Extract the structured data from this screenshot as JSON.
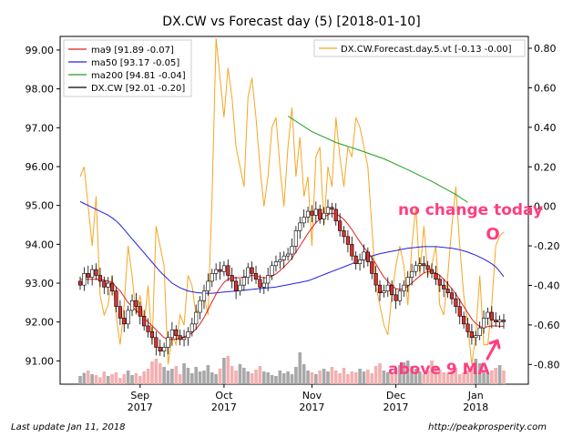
{
  "chart_data": {
    "type": "candlestick",
    "title": "DX.CW vs Forecast day (5)  [2018-01-10]",
    "left_axis": {
      "ylim": [
        90.4,
        99.35
      ],
      "ticks": [
        "99.00",
        "98.00",
        "97.00",
        "96.00",
        "95.00",
        "94.00",
        "93.00",
        "92.00",
        "91.00"
      ],
      "tick_values": [
        99,
        98,
        97,
        96,
        95,
        94,
        93,
        92,
        91
      ]
    },
    "right_axis": {
      "ylim": [
        -0.9,
        0.86
      ],
      "ticks": [
        "0.80",
        "0.60",
        "0.40",
        "0.20",
        "0.00",
        "-0.20",
        "-0.40",
        "-0.60",
        "-0.80"
      ],
      "tick_values": [
        0.8,
        0.6,
        0.4,
        0.2,
        0.0,
        -0.2,
        -0.4,
        -0.6,
        -0.8
      ]
    },
    "x_labels": [
      {
        "month": "Sep",
        "year": "2017",
        "index": 15
      },
      {
        "month": "Oct",
        "year": "2017",
        "index": 36
      },
      {
        "month": "Nov",
        "year": "2017",
        "index": 58
      },
      {
        "month": "Dec",
        "year": "2017",
        "index": 79
      },
      {
        "month": "Jan",
        "year": "2018",
        "index": 99
      }
    ],
    "n_days": 107,
    "legend_left": [
      {
        "label": "ma9 [91.89 -0.07]",
        "color": "#e02020"
      },
      {
        "label": "ma50 [93.17 -0.05]",
        "color": "#2020e0"
      },
      {
        "label": "ma200 [94.81 -0.04]",
        "color": "#20a020"
      },
      {
        "label": "DX.CW [92.01 -0.20]",
        "color": "#000000"
      }
    ],
    "legend_right": [
      {
        "label": "DX.CW.Forecast.day.5.vt [-0.13 -0.00]",
        "color": "#f5a623"
      }
    ],
    "closes": [
      92.95,
      93.25,
      93.15,
      93.35,
      93.2,
      93.05,
      92.9,
      93.0,
      92.8,
      92.4,
      92.1,
      91.95,
      92.3,
      92.55,
      92.4,
      92.15,
      91.9,
      91.75,
      91.6,
      91.35,
      91.25,
      91.35,
      91.6,
      91.8,
      91.65,
      91.55,
      91.6,
      91.75,
      91.95,
      92.25,
      92.55,
      92.8,
      93.05,
      93.25,
      93.35,
      93.3,
      93.45,
      93.2,
      93.05,
      92.8,
      92.95,
      93.15,
      93.4,
      93.25,
      93.1,
      92.9,
      93.0,
      93.2,
      93.45,
      93.55,
      93.6,
      93.7,
      93.75,
      93.95,
      94.35,
      94.55,
      94.7,
      94.85,
      94.75,
      94.9,
      94.65,
      94.8,
      94.95,
      94.9,
      94.6,
      94.35,
      94.2,
      94.0,
      93.7,
      93.5,
      93.6,
      93.8,
      93.55,
      93.25,
      92.95,
      92.75,
      92.8,
      92.95,
      92.7,
      92.55,
      92.8,
      92.95,
      93.15,
      93.3,
      93.45,
      93.5,
      93.45,
      93.35,
      93.25,
      93.1,
      92.95,
      92.85,
      92.75,
      92.6,
      92.4,
      92.15,
      91.95,
      91.75,
      91.6,
      91.65,
      91.85,
      92.1,
      92.25,
      92.05,
      92.0,
      92.05,
      92.01
    ],
    "ma9": [
      93.1,
      93.1,
      93.1,
      93.1,
      93.1,
      93.1,
      93.08,
      93.05,
      93.02,
      92.9,
      92.8,
      92.65,
      92.5,
      92.4,
      92.3,
      92.2,
      92.1,
      92.0,
      91.9,
      91.8,
      91.7,
      91.6,
      91.55,
      91.55,
      91.56,
      91.58,
      91.62,
      91.66,
      91.72,
      91.82,
      91.95,
      92.12,
      92.32,
      92.52,
      92.72,
      92.88,
      93.02,
      93.1,
      93.14,
      93.14,
      93.14,
      93.16,
      93.18,
      93.2,
      93.18,
      93.16,
      93.14,
      93.14,
      93.18,
      93.24,
      93.32,
      93.42,
      93.52,
      93.64,
      93.8,
      93.96,
      94.12,
      94.28,
      94.42,
      94.56,
      94.64,
      94.7,
      94.76,
      94.8,
      94.78,
      94.72,
      94.64,
      94.52,
      94.38,
      94.22,
      94.06,
      93.92,
      93.8,
      93.66,
      93.5,
      93.32,
      93.16,
      93.04,
      92.94,
      92.86,
      92.84,
      92.86,
      92.92,
      93.0,
      93.1,
      93.18,
      93.26,
      93.3,
      93.3,
      93.26,
      93.2,
      93.1,
      92.98,
      92.86,
      92.72,
      92.56,
      92.4,
      92.24,
      92.08,
      91.96,
      91.88,
      91.86,
      91.88,
      91.9,
      91.9,
      91.89,
      91.89
    ],
    "ma50": [
      95.1,
      95.05,
      95.0,
      94.95,
      94.9,
      94.85,
      94.8,
      94.75,
      94.68,
      94.6,
      94.5,
      94.38,
      94.26,
      94.14,
      94.02,
      93.9,
      93.78,
      93.66,
      93.54,
      93.42,
      93.3,
      93.2,
      93.1,
      93.0,
      92.94,
      92.88,
      92.84,
      92.8,
      92.78,
      92.76,
      92.75,
      92.74,
      92.74,
      92.74,
      92.75,
      92.76,
      92.77,
      92.78,
      92.79,
      92.8,
      92.81,
      92.82,
      92.83,
      92.84,
      92.85,
      92.86,
      92.87,
      92.88,
      92.89,
      92.9,
      92.92,
      92.94,
      92.96,
      92.98,
      93.0,
      93.02,
      93.04,
      93.06,
      93.1,
      93.14,
      93.18,
      93.22,
      93.26,
      93.3,
      93.34,
      93.38,
      93.42,
      93.46,
      93.5,
      93.54,
      93.58,
      93.62,
      93.66,
      93.7,
      93.73,
      93.76,
      93.78,
      93.8,
      93.82,
      93.84,
      93.86,
      93.88,
      93.9,
      93.91,
      93.92,
      93.93,
      93.94,
      93.94,
      93.94,
      93.94,
      93.93,
      93.92,
      93.91,
      93.9,
      93.88,
      93.86,
      93.83,
      93.8,
      93.76,
      93.72,
      93.67,
      93.62,
      93.56,
      93.5,
      93.42,
      93.3,
      93.17
    ],
    "ma200_x": [
      52,
      58,
      64,
      70,
      76,
      82,
      88,
      94,
      97
    ],
    "ma200": [
      97.3,
      96.9,
      96.62,
      96.42,
      96.2,
      95.92,
      95.62,
      95.28,
      95.08
    ],
    "volume_heights": [
      0.18,
      0.25,
      0.3,
      0.22,
      0.2,
      0.15,
      0.28,
      0.18,
      0.22,
      0.26,
      0.14,
      0.22,
      0.3,
      0.2,
      0.24,
      0.18,
      0.28,
      0.34,
      0.5,
      0.56,
      0.46,
      0.38,
      0.3,
      0.34,
      0.4,
      0.22,
      0.46,
      0.36,
      0.24,
      0.38,
      0.28,
      0.3,
      0.42,
      0.26,
      0.22,
      0.34,
      0.58,
      0.62,
      0.4,
      0.3,
      0.44,
      0.36,
      0.28,
      0.24,
      0.32,
      0.4,
      0.28,
      0.26,
      0.2,
      0.18,
      0.3,
      0.24,
      0.28,
      0.22,
      0.38,
      0.7,
      0.44,
      0.3,
      0.26,
      0.22,
      0.3,
      0.34,
      0.28,
      0.38,
      0.3,
      0.24,
      0.36,
      0.22,
      0.28,
      0.26,
      0.34,
      0.28,
      0.32,
      0.24,
      0.4,
      0.46,
      0.3,
      0.26,
      0.24,
      0.3,
      0.42,
      0.48,
      0.52,
      0.4,
      0.34,
      0.28,
      0.22,
      0.3,
      0.52,
      0.4,
      0.32,
      0.26,
      0.24,
      0.3,
      0.36,
      0.22,
      0.26,
      0.3,
      0.4,
      0.56,
      0.46,
      0.28,
      0.24,
      0.3,
      0.36,
      0.42,
      0.3
    ],
    "forecast_x": [
      0,
      1,
      2,
      3,
      4,
      5,
      6,
      7,
      8,
      9,
      10,
      11,
      12,
      13,
      14,
      15,
      16,
      17,
      18,
      19,
      20,
      21,
      22,
      23,
      24,
      25,
      26,
      27,
      28,
      29,
      30,
      31,
      32,
      33,
      34,
      35,
      36,
      37,
      38,
      39,
      40,
      41,
      42,
      43,
      44,
      45,
      46,
      47,
      48,
      49,
      50,
      51,
      52,
      53,
      54,
      55,
      56,
      57,
      58,
      59,
      60,
      61,
      62,
      63,
      64,
      65,
      66,
      67,
      68,
      69,
      70,
      71,
      72,
      73,
      74,
      75,
      76,
      77,
      78,
      79,
      80,
      81,
      82,
      83,
      84,
      85,
      86,
      87,
      88,
      89,
      90,
      91,
      92,
      93,
      94,
      95,
      96,
      97,
      98,
      99,
      100,
      101,
      102,
      103,
      104,
      105,
      106
    ],
    "forecast": [
      0.15,
      0.2,
      0.0,
      -0.2,
      0.05,
      -0.45,
      -0.55,
      -0.5,
      -0.35,
      -0.55,
      -0.7,
      -0.5,
      -0.2,
      -0.35,
      -0.55,
      -0.45,
      -0.6,
      -0.4,
      -0.7,
      -0.1,
      -0.2,
      -0.3,
      -0.8,
      -0.65,
      -0.7,
      -0.55,
      -0.6,
      -0.35,
      -0.4,
      -0.55,
      -0.5,
      -0.45,
      -0.55,
      0.05,
      0.85,
      0.65,
      0.45,
      0.7,
      0.55,
      0.3,
      0.2,
      0.1,
      0.55,
      0.65,
      0.45,
      0.2,
      0.0,
      0.15,
      0.4,
      0.45,
      0.2,
      0.0,
      0.3,
      0.5,
      0.15,
      0.35,
      0.05,
      0.15,
      -0.2,
      0.25,
      0.3,
      -0.1,
      0.2,
      0.1,
      0.45,
      0.25,
      0.1,
      0.3,
      0.25,
      0.45,
      0.4,
      0.3,
      0.2,
      -0.1,
      -0.4,
      -0.5,
      -0.6,
      -0.65,
      -0.45,
      -0.3,
      -0.2,
      -0.3,
      -0.5,
      -0.2,
      0.0,
      -0.35,
      -0.1,
      -0.35,
      -0.3,
      -0.2,
      -0.5,
      -0.55,
      -0.35,
      -0.1,
      0.1,
      -0.2,
      -0.45,
      -0.6,
      -0.8,
      -0.65,
      -0.35,
      -0.7,
      -0.7,
      -0.5,
      -0.2,
      -0.15,
      -0.13
    ]
  },
  "annotations": {
    "no_change": "no change today",
    "marker_o": "O",
    "above_ma": "above 9 MA"
  },
  "footer": {
    "left": "Last update Jan 11, 2018",
    "right": "http://peakprosperity.com"
  },
  "colors": {
    "up": "#ffffff",
    "down": "#e03030",
    "vol_up": "#a8a8a8",
    "vol_down": "#f2b0b0",
    "annotation": "#ff3e7f"
  }
}
